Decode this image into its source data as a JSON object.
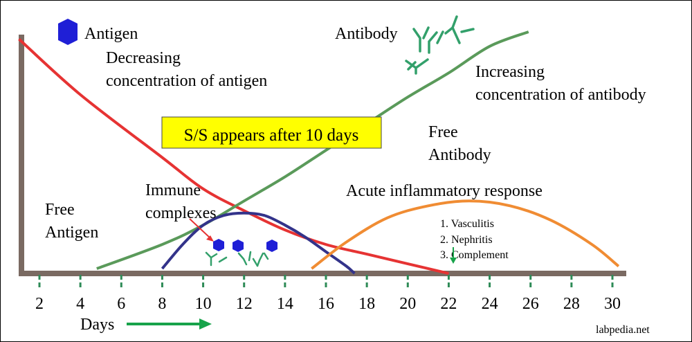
{
  "chart_data": {
    "type": "line",
    "xlabel": "Days",
    "x_ticks": [
      2,
      4,
      6,
      8,
      10,
      12,
      14,
      16,
      18,
      20,
      22,
      24,
      26,
      28,
      30
    ],
    "xlim": [
      1,
      31
    ],
    "series": [
      {
        "key": "antigen",
        "color": "#e63333",
        "x": [
          1,
          4,
          8,
          10,
          12,
          14,
          16,
          18,
          20,
          22
        ],
        "y": [
          0.97,
          0.74,
          0.48,
          0.35,
          0.26,
          0.18,
          0.12,
          0.08,
          0.04,
          0.0
        ]
      },
      {
        "key": "antibody",
        "color": "#5a9a5a",
        "x": [
          4.8,
          8,
          10,
          12,
          14,
          16,
          18,
          20,
          22,
          24,
          25.9
        ],
        "y": [
          0.02,
          0.12,
          0.2,
          0.3,
          0.4,
          0.51,
          0.62,
          0.73,
          0.83,
          0.94,
          1.0
        ]
      },
      {
        "key": "immune_complexes",
        "color": "#33338a",
        "x": [
          8,
          9,
          10,
          11,
          12,
          13,
          14,
          15,
          16,
          17,
          17.4
        ],
        "y": [
          0.02,
          0.12,
          0.2,
          0.24,
          0.25,
          0.24,
          0.2,
          0.15,
          0.09,
          0.03,
          0.0
        ]
      },
      {
        "key": "inflammation",
        "color": "#f08c33",
        "x": [
          15.3,
          17,
          19,
          21,
          23,
          25,
          27,
          29,
          30.3
        ],
        "y": [
          0.02,
          0.13,
          0.23,
          0.28,
          0.3,
          0.28,
          0.22,
          0.12,
          0.03
        ]
      }
    ],
    "annotations": {
      "antigen_legend": "Antigen",
      "antibody_legend": "Antibody",
      "decreasing": [
        "Decreasing",
        "concentration of antigen"
      ],
      "increasing": [
        "Increasing",
        "concentration of antibody"
      ],
      "highlight": "S/S appears after 10 days",
      "free_antibody": [
        "Free",
        "Antibody"
      ],
      "acute": "Acute inflammatory response",
      "immune": [
        "Immune",
        "complexes"
      ],
      "free_antigen": [
        "Free",
        "Antigen"
      ],
      "list": [
        "1. Vasculitis",
        "2. Nephritis",
        "3.  Complement"
      ],
      "source": "labpedia.net"
    },
    "colors": {
      "axis": "#7a6a62",
      "tick": "#2e8b57",
      "antigen_marker": "#1f1fd6",
      "antibody_icon": "#33a06b",
      "highlight_fill": "#ffff00",
      "arrow": "#17a34a",
      "pointer": "#e63333"
    }
  }
}
